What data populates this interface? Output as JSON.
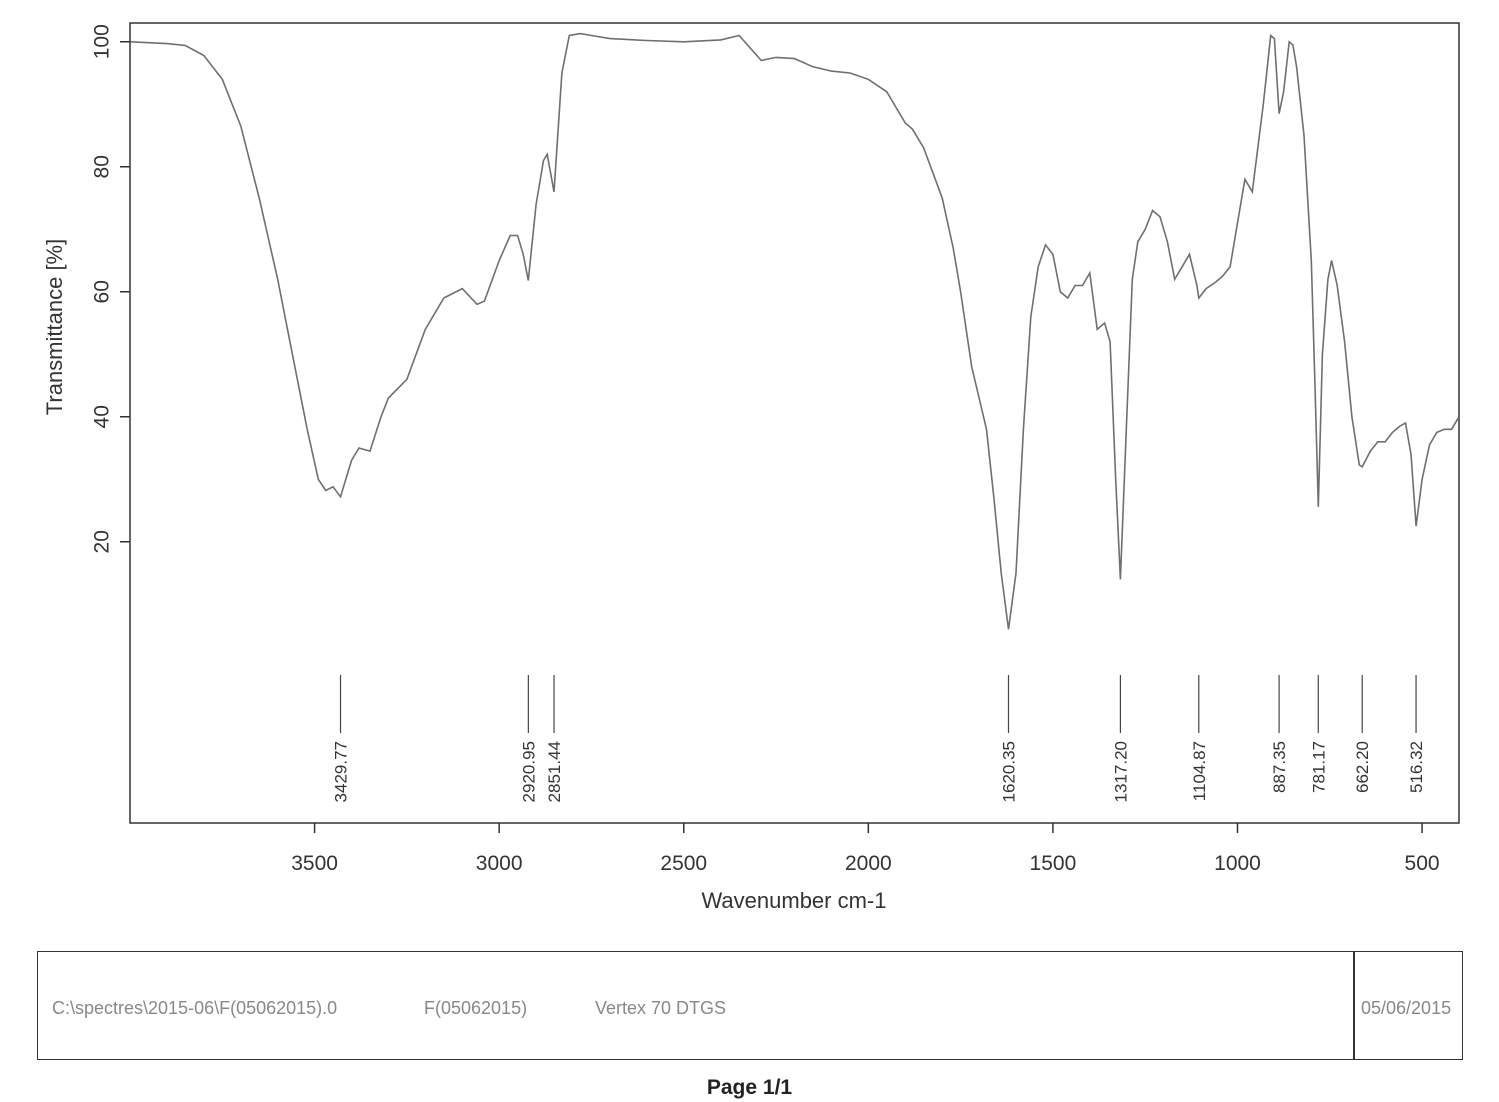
{
  "chart_data": {
    "type": "line",
    "title": "",
    "xlabel": "Wavenumber cm-1",
    "ylabel": "Transmittance [%]",
    "xlim": [
      4000,
      400
    ],
    "ylim": [
      -25,
      103
    ],
    "x_ticks": [
      3500,
      3000,
      2500,
      2000,
      1500,
      1000,
      500
    ],
    "y_ticks": [
      20,
      40,
      60,
      80,
      100
    ],
    "grid": false,
    "series": [
      {
        "name": "",
        "color": "#6f6f6f",
        "points": [
          [
            3998,
            100
          ],
          [
            3900,
            99.7
          ],
          [
            3850,
            99.4
          ],
          [
            3800,
            97.8
          ],
          [
            3750,
            94
          ],
          [
            3700,
            86.5
          ],
          [
            3650,
            75
          ],
          [
            3600,
            62
          ],
          [
            3560,
            50
          ],
          [
            3520,
            38
          ],
          [
            3490,
            30
          ],
          [
            3470,
            28.2
          ],
          [
            3450,
            28.8
          ],
          [
            3429.77,
            27.2
          ],
          [
            3400,
            33
          ],
          [
            3380,
            35
          ],
          [
            3350,
            34.5
          ],
          [
            3320,
            40
          ],
          [
            3300,
            43
          ],
          [
            3250,
            46
          ],
          [
            3200,
            54
          ],
          [
            3150,
            59
          ],
          [
            3100,
            60.5
          ],
          [
            3060,
            58
          ],
          [
            3040,
            58.5
          ],
          [
            3000,
            65
          ],
          [
            2970,
            69
          ],
          [
            2950,
            69
          ],
          [
            2935,
            66
          ],
          [
            2920.95,
            61.8
          ],
          [
            2900,
            74
          ],
          [
            2880,
            81
          ],
          [
            2870,
            82
          ],
          [
            2851.44,
            76
          ],
          [
            2830,
            95
          ],
          [
            2810,
            101
          ],
          [
            2780,
            101.3
          ],
          [
            2750,
            101
          ],
          [
            2700,
            100.5
          ],
          [
            2600,
            100.2
          ],
          [
            2500,
            100
          ],
          [
            2400,
            100.3
          ],
          [
            2350,
            101
          ],
          [
            2320,
            99
          ],
          [
            2290,
            97
          ],
          [
            2250,
            97.5
          ],
          [
            2200,
            97.3
          ],
          [
            2150,
            96
          ],
          [
            2100,
            95.3
          ],
          [
            2050,
            95
          ],
          [
            2000,
            94
          ],
          [
            1950,
            92
          ],
          [
            1900,
            87
          ],
          [
            1880,
            86
          ],
          [
            1850,
            83
          ],
          [
            1800,
            75
          ],
          [
            1770,
            67
          ],
          [
            1750,
            60
          ],
          [
            1720,
            48
          ],
          [
            1700,
            43
          ],
          [
            1680,
            38
          ],
          [
            1660,
            27
          ],
          [
            1640,
            15
          ],
          [
            1620.35,
            6
          ],
          [
            1600,
            15
          ],
          [
            1580,
            38
          ],
          [
            1560,
            56
          ],
          [
            1540,
            64
          ],
          [
            1520,
            67.5
          ],
          [
            1500,
            66
          ],
          [
            1480,
            60
          ],
          [
            1460,
            59
          ],
          [
            1440,
            61
          ],
          [
            1420,
            61
          ],
          [
            1400,
            63
          ],
          [
            1380,
            54
          ],
          [
            1360,
            55
          ],
          [
            1345,
            52
          ],
          [
            1330,
            30
          ],
          [
            1317.2,
            14
          ],
          [
            1300,
            40
          ],
          [
            1285,
            62
          ],
          [
            1270,
            68
          ],
          [
            1250,
            70
          ],
          [
            1230,
            73
          ],
          [
            1210,
            72
          ],
          [
            1190,
            68
          ],
          [
            1170,
            62
          ],
          [
            1150,
            64
          ],
          [
            1130,
            66
          ],
          [
            1110,
            61
          ],
          [
            1104.87,
            59
          ],
          [
            1085,
            60.5
          ],
          [
            1060,
            61.5
          ],
          [
            1040,
            62.5
          ],
          [
            1020,
            64
          ],
          [
            1000,
            71
          ],
          [
            980,
            78
          ],
          [
            960,
            76
          ],
          [
            945,
            83
          ],
          [
            930,
            90
          ],
          [
            910,
            101
          ],
          [
            900,
            100.5
          ],
          [
            887.35,
            88.5
          ],
          [
            875,
            92
          ],
          [
            860,
            100
          ],
          [
            850,
            99.5
          ],
          [
            840,
            96
          ],
          [
            820,
            85
          ],
          [
            800,
            65
          ],
          [
            790,
            45
          ],
          [
            781.17,
            25.6
          ],
          [
            770,
            50
          ],
          [
            755,
            62
          ],
          [
            745,
            65
          ],
          [
            730,
            61
          ],
          [
            710,
            52
          ],
          [
            690,
            40
          ],
          [
            670,
            32.3
          ],
          [
            662.2,
            32
          ],
          [
            640,
            34.5
          ],
          [
            620,
            36
          ],
          [
            600,
            36
          ],
          [
            580,
            37.5
          ],
          [
            560,
            38.5
          ],
          [
            545,
            39
          ],
          [
            530,
            34
          ],
          [
            516.32,
            22.5
          ],
          [
            500,
            30
          ],
          [
            480,
            35.5
          ],
          [
            460,
            37.5
          ],
          [
            440,
            38
          ],
          [
            420,
            38
          ],
          [
            400,
            40
          ]
        ]
      }
    ],
    "peaks": [
      "3429.77",
      "2920.95",
      "2851.44",
      "1620.35",
      "1317.20",
      "1104.87",
      "887.35",
      "781.17",
      "662.20",
      "516.32"
    ]
  },
  "footer": {
    "file_path": "C:\\spectres\\2015-06\\F(05062015).0",
    "sample_name": "F(05062015)",
    "instrument": "Vertex 70 DTGS",
    "date": "05/06/2015"
  },
  "page_label": "Page 1/1"
}
